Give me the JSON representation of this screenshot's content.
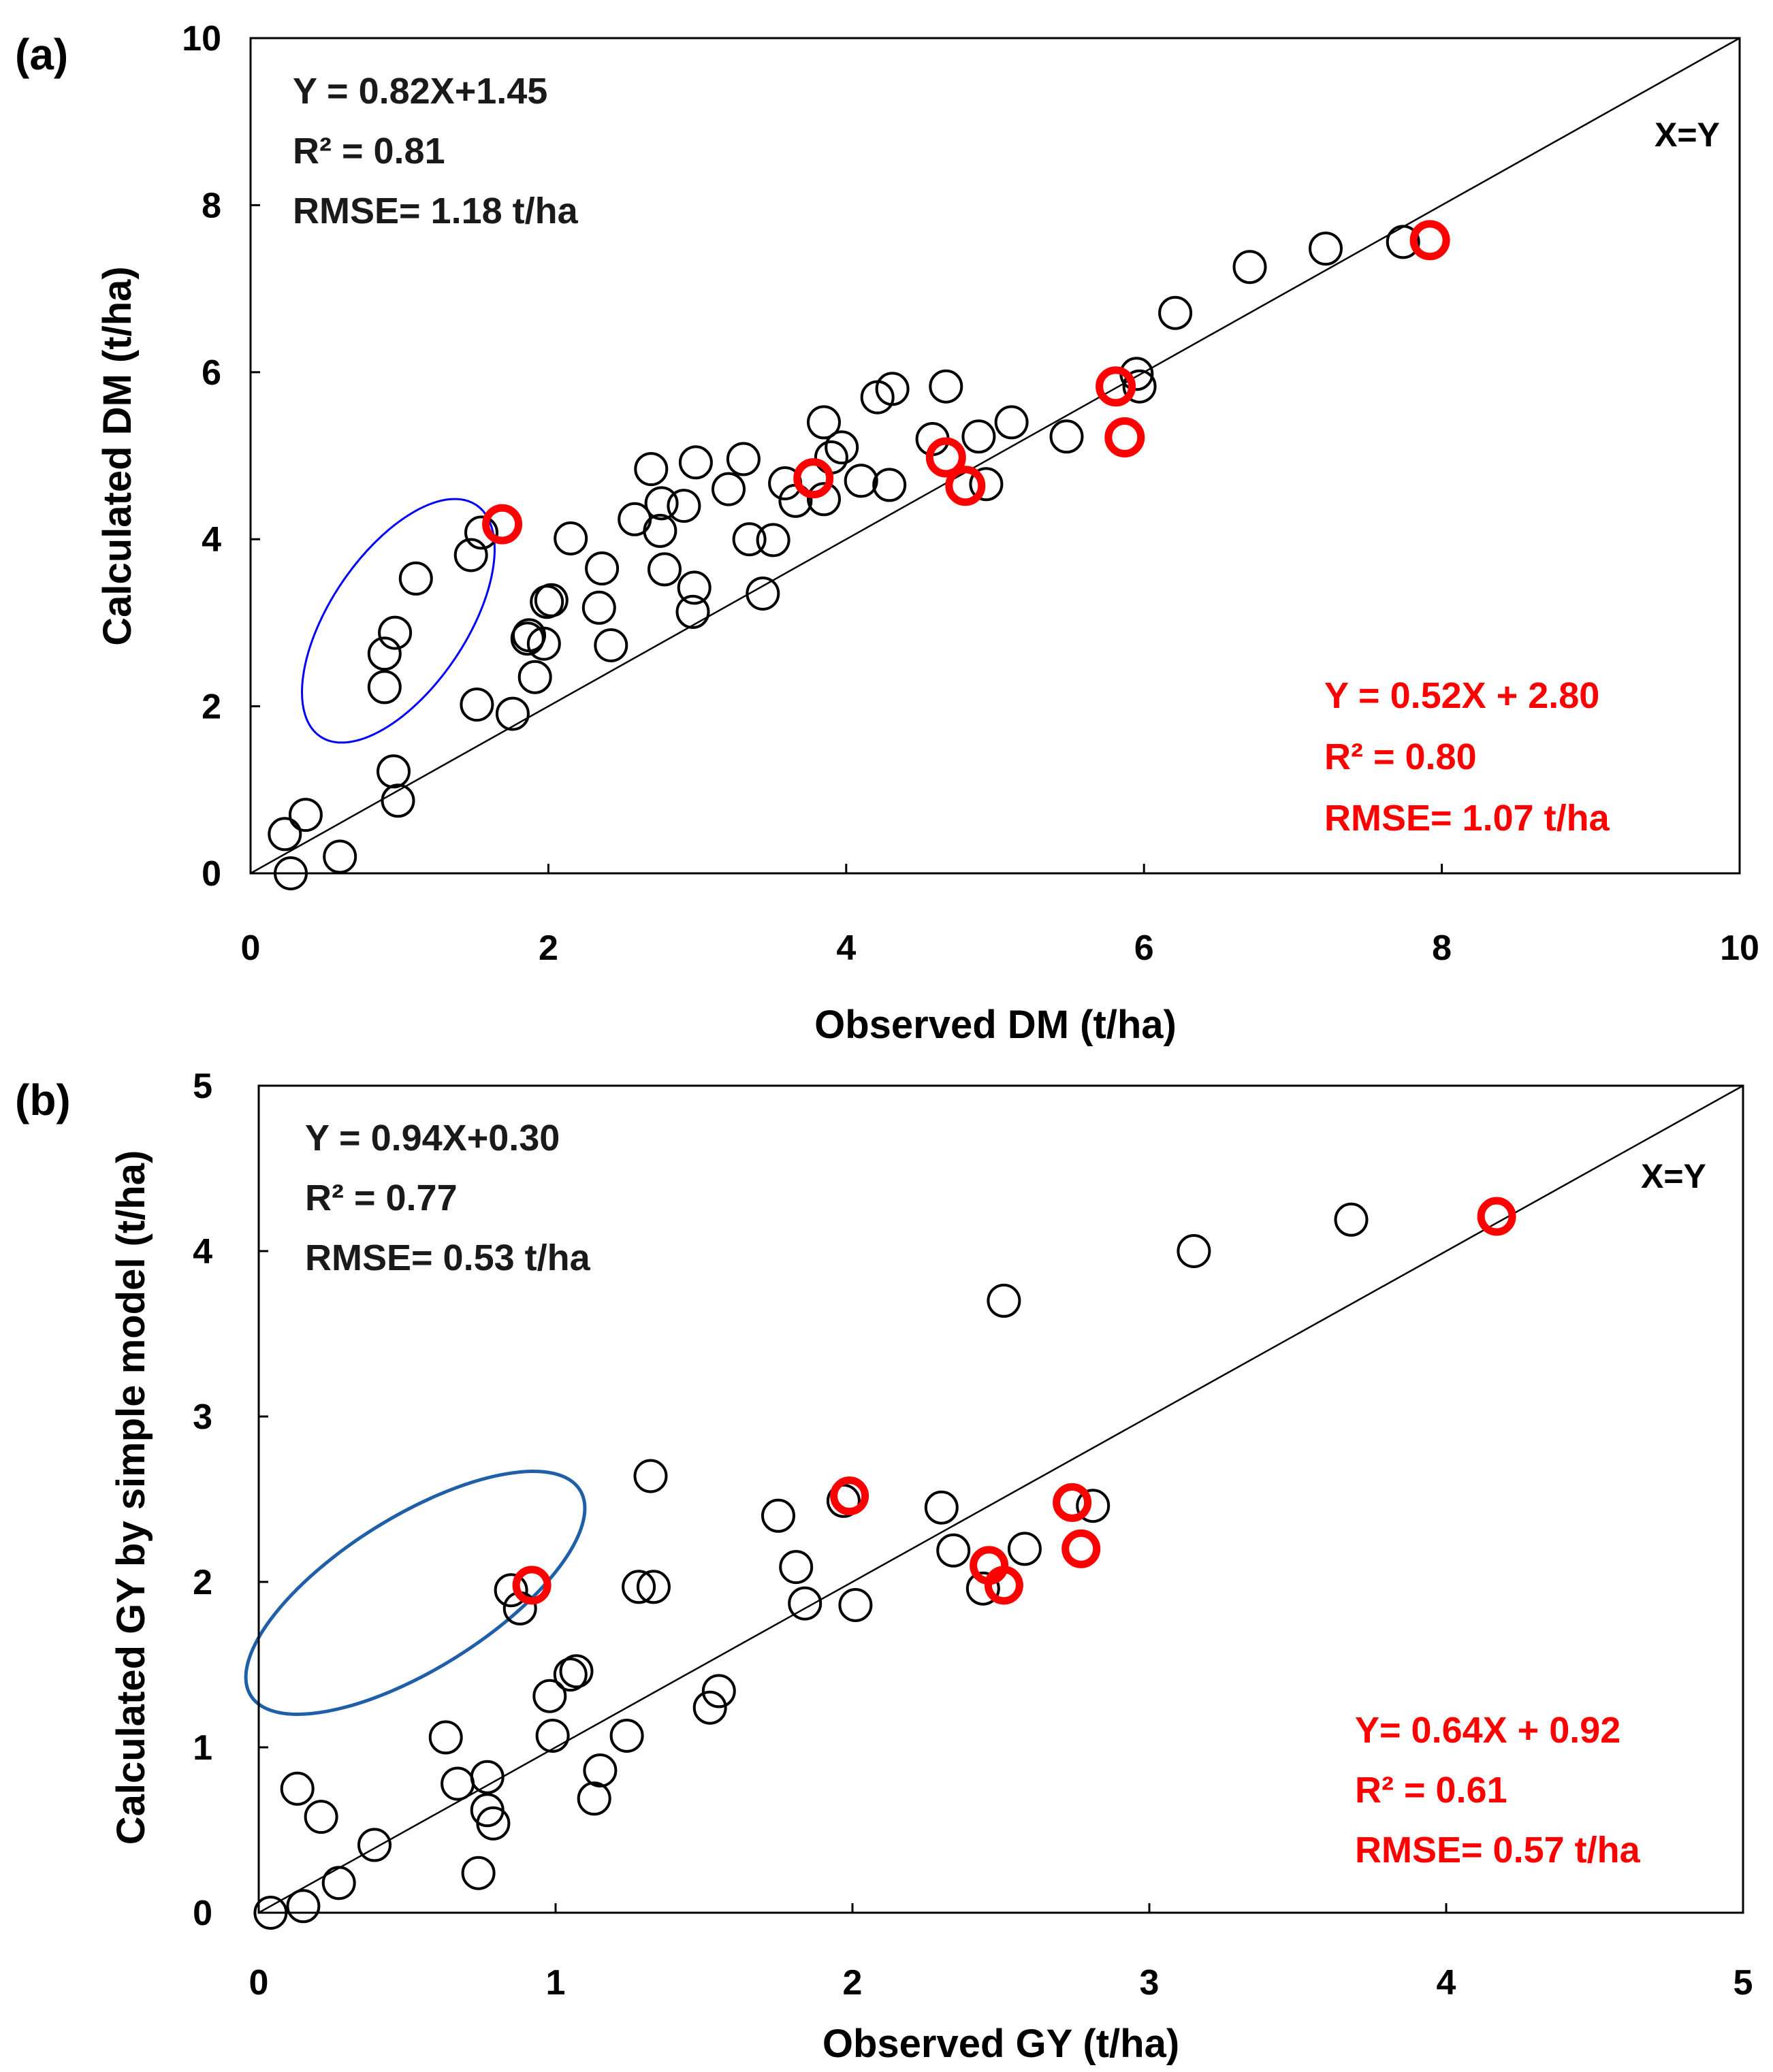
{
  "chart_data": [
    {
      "type": "scatter",
      "panel_label": "(a)",
      "title": "",
      "xlabel": "Observed DM (t/ha)",
      "ylabel": "Calculated DM (t/ha)",
      "xlim": [
        0,
        10
      ],
      "ylim": [
        0,
        10
      ],
      "xticks": [
        "0",
        "2",
        "4",
        "6",
        "8",
        "10"
      ],
      "yticks": [
        "0",
        "2",
        "4",
        "6",
        "8",
        "10"
      ],
      "reference_line_label": "X=Y",
      "series": [
        {
          "name": "black",
          "color": "#000000",
          "points": [
            [
              0.23,
              0.47
            ],
            [
              0.37,
              0.7
            ],
            [
              0.27,
              0.0
            ],
            [
              0.6,
              0.2
            ],
            [
              0.99,
              0.87
            ],
            [
              0.96,
              1.22
            ],
            [
              0.9,
              2.23
            ],
            [
              0.9,
              2.63
            ],
            [
              0.97,
              2.88
            ],
            [
              1.11,
              3.53
            ],
            [
              1.48,
              3.81
            ],
            [
              1.55,
              4.08
            ],
            [
              1.52,
              2.02
            ],
            [
              1.76,
              1.91
            ],
            [
              1.86,
              2.81
            ],
            [
              1.87,
              2.85
            ],
            [
              1.91,
              2.35
            ],
            [
              1.97,
              2.75
            ],
            [
              1.99,
              3.25
            ],
            [
              2.02,
              3.27
            ],
            [
              2.15,
              4.01
            ],
            [
              2.36,
              3.65
            ],
            [
              2.34,
              3.18
            ],
            [
              2.42,
              2.73
            ],
            [
              2.58,
              4.24
            ],
            [
              2.69,
              4.84
            ],
            [
              2.76,
              4.43
            ],
            [
              2.75,
              4.1
            ],
            [
              2.78,
              3.64
            ],
            [
              2.91,
              4.4
            ],
            [
              2.97,
              3.13
            ],
            [
              2.98,
              3.42
            ],
            [
              2.99,
              4.92
            ],
            [
              3.21,
              4.6
            ],
            [
              3.31,
              4.96
            ],
            [
              3.35,
              4.0
            ],
            [
              3.44,
              3.35
            ],
            [
              3.51,
              3.99
            ],
            [
              3.59,
              4.67
            ],
            [
              3.66,
              4.46
            ],
            [
              3.85,
              5.4
            ],
            [
              3.85,
              4.48
            ],
            [
              3.9,
              4.98
            ],
            [
              3.97,
              5.1
            ],
            [
              4.1,
              4.7
            ],
            [
              4.21,
              5.7
            ],
            [
              4.31,
              5.8
            ],
            [
              4.29,
              4.65
            ],
            [
              4.58,
              5.2
            ],
            [
              4.67,
              5.83
            ],
            [
              4.89,
              5.23
            ],
            [
              4.94,
              4.66
            ],
            [
              5.11,
              5.4
            ],
            [
              5.48,
              5.23
            ],
            [
              5.95,
              5.98
            ],
            [
              5.97,
              5.83
            ],
            [
              6.21,
              6.71
            ],
            [
              6.71,
              7.26
            ],
            [
              7.22,
              7.48
            ],
            [
              7.74,
              7.56
            ]
          ]
        },
        {
          "name": "red",
          "color": "#ff0000",
          "points": [
            [
              1.69,
              4.18
            ],
            [
              3.78,
              4.73
            ],
            [
              4.67,
              4.98
            ],
            [
              4.8,
              4.64
            ],
            [
              5.81,
              5.83
            ],
            [
              5.87,
              5.22
            ],
            [
              7.92,
              7.58
            ]
          ]
        }
      ],
      "highlight_ellipse": {
        "center": [
          1.2,
          3.4
        ],
        "color": "#0000ff"
      },
      "annotations": {
        "black": [
          "Y = 0.82X+1.45",
          "R² = 0.81",
          "RMSE= 1.18 t/ha"
        ],
        "red": [
          "Y = 0.52X + 2.80",
          "R² = 0.80",
          "RMSE= 1.07 t/ha"
        ]
      }
    },
    {
      "type": "scatter",
      "panel_label": "(b)",
      "title": "",
      "xlabel": "Observed GY (t/ha)",
      "ylabel": "Calculated GY by simple model (t/ha)",
      "xlim": [
        0,
        5
      ],
      "ylim": [
        0,
        5
      ],
      "xticks": [
        "0",
        "1",
        "2",
        "3",
        "4",
        "5"
      ],
      "yticks": [
        "0",
        "1",
        "2",
        "3",
        "4",
        "5"
      ],
      "reference_line_label": "X=Y",
      "series": [
        {
          "name": "black",
          "color": "#000000",
          "points": [
            [
              0.04,
              0.0
            ],
            [
              0.15,
              0.04
            ],
            [
              0.13,
              0.75
            ],
            [
              0.21,
              0.58
            ],
            [
              0.27,
              0.18
            ],
            [
              0.39,
              0.41
            ],
            [
              0.63,
              1.06
            ],
            [
              0.67,
              0.78
            ],
            [
              0.74,
              0.24
            ],
            [
              0.77,
              0.82
            ],
            [
              0.77,
              0.62
            ],
            [
              0.79,
              0.54
            ],
            [
              0.85,
              1.95
            ],
            [
              0.88,
              1.84
            ],
            [
              0.98,
              1.31
            ],
            [
              0.99,
              1.07
            ],
            [
              1.05,
              1.44
            ],
            [
              1.07,
              1.46
            ],
            [
              1.13,
              0.69
            ],
            [
              1.15,
              0.86
            ],
            [
              1.24,
              1.07
            ],
            [
              1.28,
              1.97
            ],
            [
              1.33,
              1.97
            ],
            [
              1.32,
              2.64
            ],
            [
              1.52,
              1.24
            ],
            [
              1.55,
              1.34
            ],
            [
              1.75,
              2.4
            ],
            [
              1.81,
              2.09
            ],
            [
              1.84,
              1.87
            ],
            [
              1.97,
              2.49
            ],
            [
              2.01,
              1.86
            ],
            [
              2.3,
              2.45
            ],
            [
              2.34,
              2.19
            ],
            [
              2.44,
              1.96
            ],
            [
              2.51,
              3.7
            ],
            [
              2.58,
              2.2
            ],
            [
              2.81,
              2.46
            ],
            [
              3.15,
              4.0
            ],
            [
              3.68,
              4.19
            ]
          ]
        },
        {
          "name": "red",
          "color": "#ff0000",
          "points": [
            [
              0.92,
              1.98
            ],
            [
              1.99,
              2.52
            ],
            [
              2.46,
              2.1
            ],
            [
              2.51,
              1.98
            ],
            [
              2.74,
              2.48
            ],
            [
              2.77,
              2.2
            ],
            [
              4.17,
              4.21
            ]
          ]
        }
      ],
      "highlight_ellipse": {
        "center": [
          0.55,
          1.45
        ],
        "color": "#1f5fa8"
      },
      "annotations": {
        "black": [
          "Y = 0.94X+0.30",
          "R² = 0.77",
          "RMSE= 0.53 t/ha"
        ],
        "red": [
          "Y= 0.64X + 0.92",
          "R² = 0.61",
          "RMSE= 0.57 t/ha"
        ]
      }
    }
  ]
}
